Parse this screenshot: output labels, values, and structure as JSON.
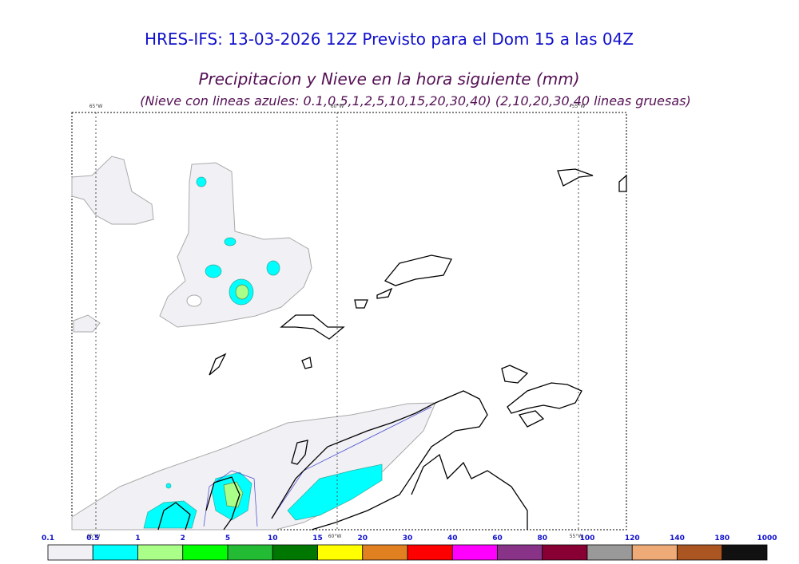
{
  "header": {
    "title": "HRES-IFS: 13-03-2026 12Z Previsto para el Dom 15 a las 04Z",
    "subtitle": "Precipitacion y Nieve en la hora siguiente (mm)",
    "note": "(Nieve con lineas azules: 0.1,0.5,1,2,5,10,15,20,30,40)  (2,10,20,30,40 lineas gruesas)"
  },
  "map": {
    "meridians": [
      "65°W",
      "60°W",
      "55°W"
    ]
  },
  "colorbar": {
    "levels": [
      0.1,
      0.5,
      1,
      2,
      5,
      10,
      15,
      20,
      30,
      40,
      60,
      80,
      100,
      120,
      140,
      180,
      1000
    ],
    "colors": [
      "#f0f0f5",
      "#00ffff",
      "#aaff88",
      "#00ff00",
      "#22bb33",
      "#007700",
      "#ffff00",
      "#e08020",
      "#ff0000",
      "#ff00ff",
      "#883388",
      "#880033",
      "#999999",
      "#eeaa77",
      "#aa5522",
      "#111111"
    ]
  }
}
